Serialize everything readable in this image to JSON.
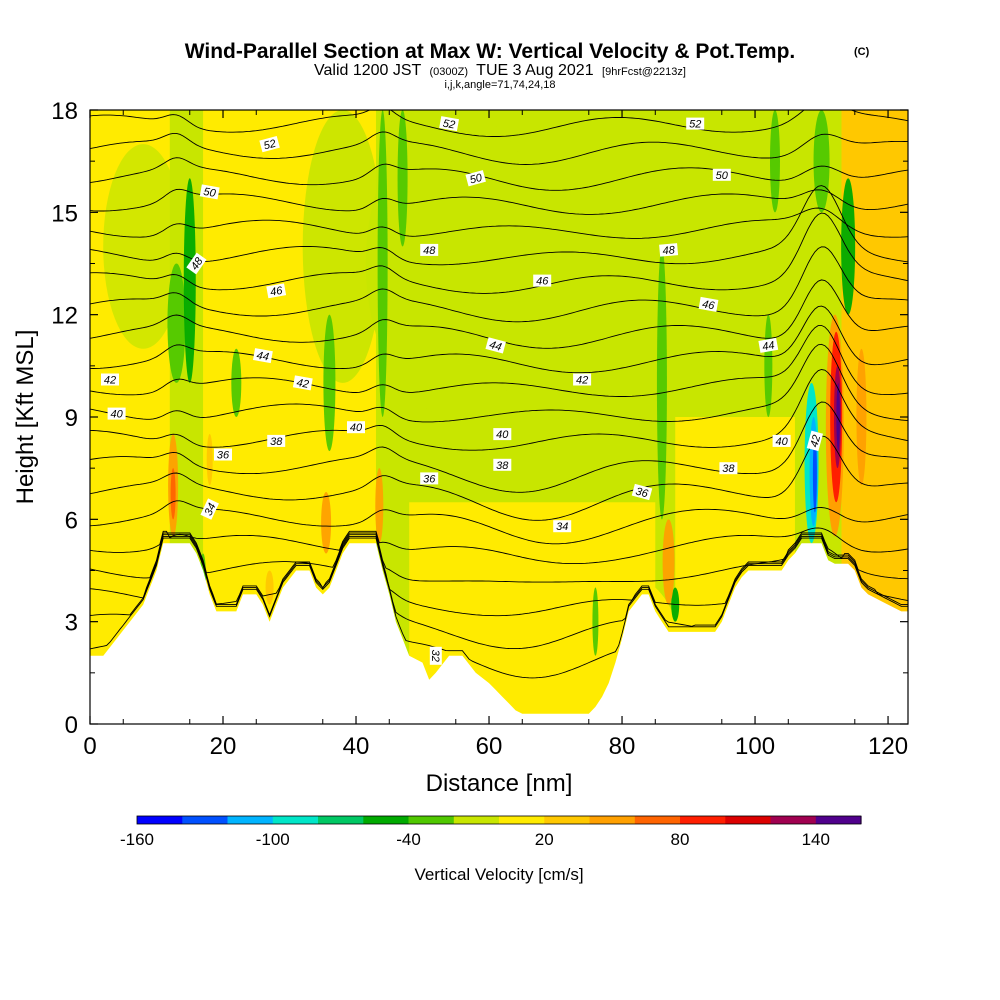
{
  "chart_data": {
    "type": "heatmap",
    "title": "Wind-Parallel Section at Max W: Vertical Velocity & Pot.Temp.",
    "title_mark": "(C)",
    "subtitle": {
      "valid": "Valid 1200 JST",
      "utc": "(0300Z)",
      "date": "TUE 3 Aug 2021",
      "fcst": "[9hrFcst@2213z]"
    },
    "indices": "i,j,k,angle=71,74,24,18",
    "xlabel": "Distance [nm]",
    "ylabel": "Height [Kft MSL]",
    "xlim": [
      0,
      123
    ],
    "ylim": [
      0,
      18
    ],
    "xticks": [
      0,
      20,
      40,
      60,
      80,
      100,
      120
    ],
    "yticks": [
      0,
      3,
      6,
      9,
      12,
      15,
      18
    ],
    "colorbar": {
      "label": "Vertical Velocity [cm/s]",
      "range": [
        -160,
        160
      ],
      "tick_values": [
        -160,
        -100,
        -40,
        20,
        80,
        140
      ],
      "colors": [
        "#0000ff",
        "#0050ff",
        "#00b4ff",
        "#00e6c8",
        "#00c864",
        "#00aa00",
        "#50c800",
        "#c8e600",
        "#ffeb00",
        "#ffc800",
        "#ffa000",
        "#ff6400",
        "#ff1e00",
        "#dc0000",
        "#a00050",
        "#50008c"
      ]
    },
    "terrain_kft": [
      [
        0,
        2.0
      ],
      [
        2,
        2.0
      ],
      [
        4,
        2.5
      ],
      [
        6,
        3.0
      ],
      [
        8,
        3.5
      ],
      [
        10,
        4.5
      ],
      [
        11,
        5.3
      ],
      [
        15,
        5.3
      ],
      [
        16,
        5.0
      ],
      [
        17,
        4.5
      ],
      [
        18,
        3.8
      ],
      [
        19,
        3.3
      ],
      [
        22,
        3.3
      ],
      [
        23,
        3.8
      ],
      [
        25,
        3.8
      ],
      [
        26,
        3.5
      ],
      [
        27,
        3.0
      ],
      [
        28,
        3.5
      ],
      [
        29,
        4.0
      ],
      [
        31,
        4.5
      ],
      [
        33,
        4.5
      ],
      [
        34,
        4.0
      ],
      [
        35,
        3.8
      ],
      [
        36,
        4.0
      ],
      [
        37,
        4.5
      ],
      [
        38,
        5.0
      ],
      [
        39,
        5.3
      ],
      [
        43,
        5.3
      ],
      [
        44,
        4.5
      ],
      [
        45,
        3.8
      ],
      [
        46,
        3.0
      ],
      [
        47,
        2.5
      ],
      [
        48,
        2.0
      ],
      [
        50,
        1.8
      ],
      [
        51,
        1.3
      ],
      [
        52,
        1.5
      ],
      [
        54,
        2.0
      ],
      [
        56,
        2.0
      ],
      [
        58,
        1.5
      ],
      [
        60,
        1.2
      ],
      [
        61,
        1.0
      ],
      [
        62,
        0.8
      ],
      [
        63,
        0.6
      ],
      [
        64,
        0.4
      ],
      [
        65,
        0.3
      ],
      [
        75,
        0.3
      ],
      [
        76,
        0.5
      ],
      [
        77,
        0.8
      ],
      [
        78,
        1.2
      ],
      [
        79,
        1.8
      ],
      [
        80,
        2.5
      ],
      [
        81,
        3.3
      ],
      [
        83,
        3.8
      ],
      [
        84,
        3.8
      ],
      [
        85,
        3.3
      ],
      [
        86,
        3.0
      ],
      [
        87,
        2.7
      ],
      [
        94,
        2.7
      ],
      [
        95,
        3.0
      ],
      [
        96,
        3.5
      ],
      [
        97,
        4.0
      ],
      [
        98,
        4.3
      ],
      [
        99,
        4.5
      ],
      [
        104,
        4.5
      ],
      [
        105,
        4.8
      ],
      [
        106,
        5.0
      ],
      [
        107,
        5.3
      ],
      [
        110,
        5.3
      ],
      [
        111,
        4.8
      ],
      [
        112,
        4.7
      ],
      [
        114,
        4.7
      ],
      [
        115,
        4.5
      ],
      [
        116,
        4.0
      ],
      [
        117,
        3.8
      ],
      [
        118,
        3.7
      ],
      [
        119,
        3.6
      ],
      [
        120,
        3.5
      ],
      [
        121,
        3.4
      ],
      [
        122,
        3.3
      ],
      [
        123,
        3.3
      ]
    ],
    "theta_levels_K": [
      32,
      33,
      34,
      35,
      36,
      37,
      38,
      39,
      40,
      41,
      42,
      43,
      44,
      45,
      46,
      47,
      48,
      49,
      50,
      51,
      52,
      53
    ],
    "contour_labels": [
      {
        "text": "52",
        "x": 27,
        "y": 17.0,
        "rot": -15
      },
      {
        "text": "52",
        "x": 54,
        "y": 17.6,
        "rot": 10
      },
      {
        "text": "52",
        "x": 91,
        "y": 17.6,
        "rot": 0
      },
      {
        "text": "50",
        "x": 18,
        "y": 15.6,
        "rot": 10
      },
      {
        "text": "50",
        "x": 58,
        "y": 16.0,
        "rot": -15
      },
      {
        "text": "50",
        "x": 95,
        "y": 16.1,
        "rot": 0
      },
      {
        "text": "48",
        "x": 16,
        "y": 13.5,
        "rot": -55
      },
      {
        "text": "48",
        "x": 51,
        "y": 13.9,
        "rot": 0
      },
      {
        "text": "48",
        "x": 87,
        "y": 13.9,
        "rot": -5
      },
      {
        "text": "46",
        "x": 28,
        "y": 12.7,
        "rot": -10
      },
      {
        "text": "46",
        "x": 68,
        "y": 13.0,
        "rot": 0
      },
      {
        "text": "46",
        "x": 93,
        "y": 12.3,
        "rot": 10
      },
      {
        "text": "44",
        "x": 26,
        "y": 10.8,
        "rot": 10
      },
      {
        "text": "44",
        "x": 61,
        "y": 11.1,
        "rot": 15
      },
      {
        "text": "44",
        "x": 102,
        "y": 11.1,
        "rot": -10
      },
      {
        "text": "42",
        "x": 3,
        "y": 10.1,
        "rot": 0
      },
      {
        "text": "42",
        "x": 32,
        "y": 10.0,
        "rot": 10
      },
      {
        "text": "42",
        "x": 74,
        "y": 10.1,
        "rot": 0
      },
      {
        "text": "42",
        "x": 109,
        "y": 8.3,
        "rot": -75
      },
      {
        "text": "40",
        "x": 4,
        "y": 9.1,
        "rot": 0
      },
      {
        "text": "40",
        "x": 40,
        "y": 8.7,
        "rot": 0
      },
      {
        "text": "40",
        "x": 62,
        "y": 8.5,
        "rot": 0
      },
      {
        "text": "40",
        "x": 104,
        "y": 8.3,
        "rot": 0
      },
      {
        "text": "38",
        "x": 28,
        "y": 8.3,
        "rot": 0
      },
      {
        "text": "38",
        "x": 62,
        "y": 7.6,
        "rot": 0
      },
      {
        "text": "38",
        "x": 96,
        "y": 7.5,
        "rot": 0
      },
      {
        "text": "36",
        "x": 20,
        "y": 7.9,
        "rot": 0
      },
      {
        "text": "36",
        "x": 51,
        "y": 7.2,
        "rot": 0
      },
      {
        "text": "36",
        "x": 83,
        "y": 6.8,
        "rot": 15
      },
      {
        "text": "34",
        "x": 18,
        "y": 6.3,
        "rot": -65
      },
      {
        "text": "34",
        "x": 71,
        "y": 5.8,
        "rot": 0
      },
      {
        "text": "32",
        "x": 52,
        "y": 2.0,
        "rot": 90
      }
    ]
  }
}
